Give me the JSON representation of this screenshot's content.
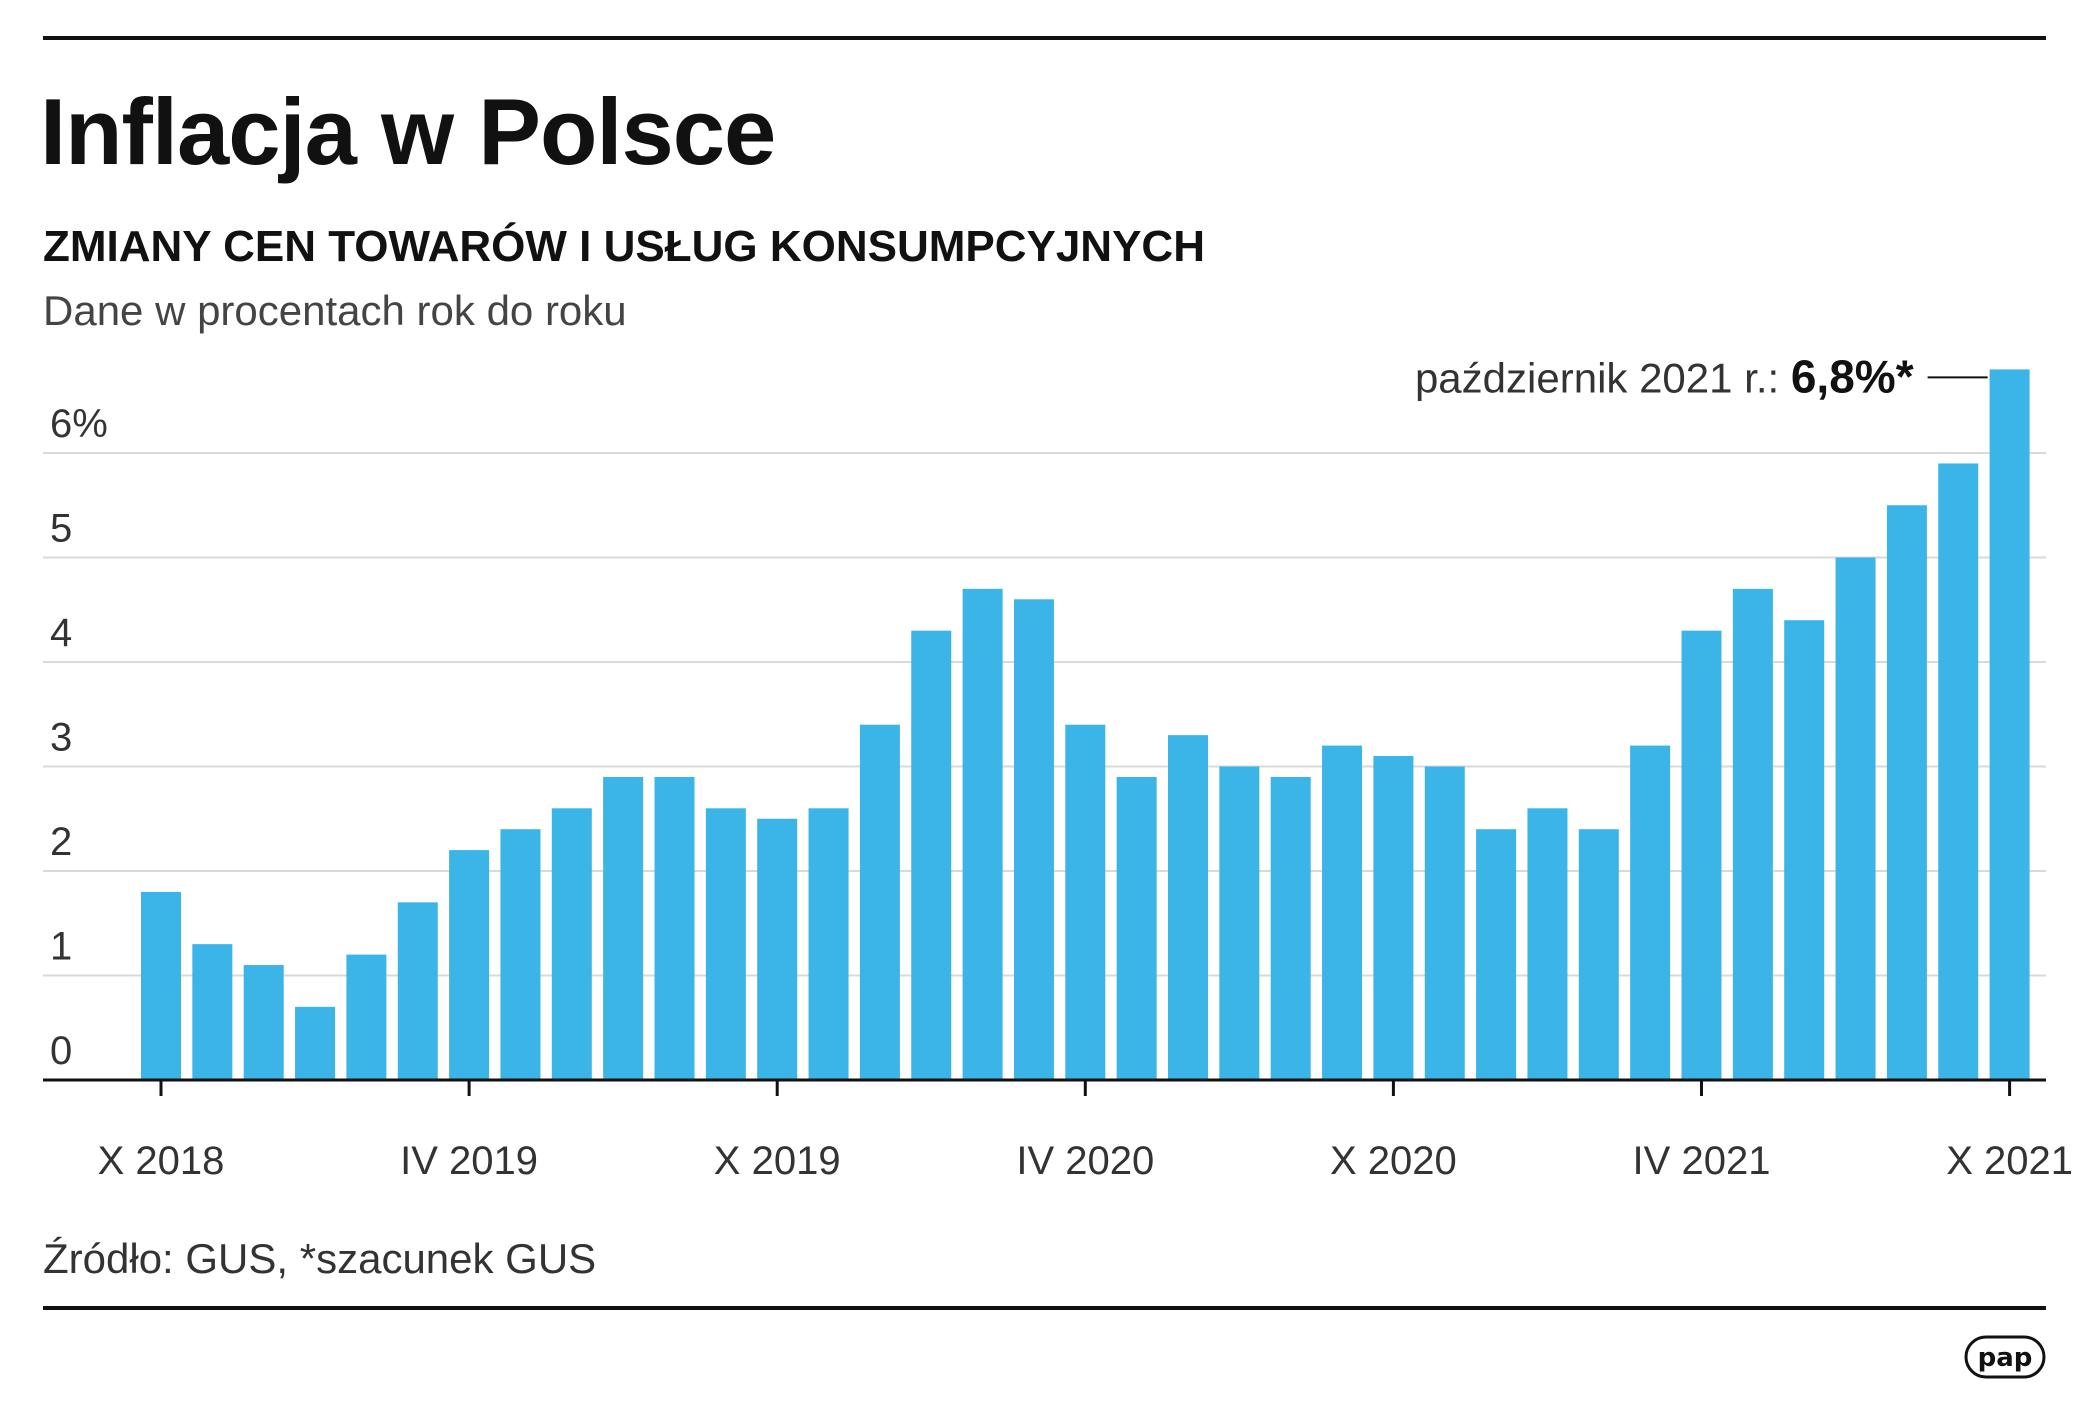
{
  "header": {
    "title": "Inflacja w Polsce",
    "subtitle": "ZMIANY CEN TOWARÓW I USŁUG KONSUMPCYJNYCH",
    "units": "Dane w procentach rok do roku"
  },
  "footer": {
    "source": "Źródło: GUS, *szacunek GUS",
    "logo": "pap"
  },
  "colors": {
    "bar": "#3bb4e8",
    "rule": "#111111",
    "grid": "#d9d9d9"
  },
  "chart_data": {
    "type": "bar",
    "x_start": "X 2018",
    "values": [
      1.8,
      1.3,
      1.1,
      0.7,
      1.2,
      1.7,
      2.2,
      2.4,
      2.6,
      2.9,
      2.9,
      2.6,
      2.5,
      2.6,
      3.4,
      4.3,
      4.7,
      4.6,
      3.4,
      2.9,
      3.3,
      3.0,
      2.9,
      3.2,
      3.1,
      3.0,
      2.4,
      2.6,
      2.4,
      3.2,
      4.3,
      4.7,
      4.4,
      5.0,
      5.5,
      5.9,
      6.8
    ],
    "x_ticks": [
      {
        "index": 0,
        "label": "X 2018"
      },
      {
        "index": 6,
        "label": "IV 2019"
      },
      {
        "index": 12,
        "label": "X 2019"
      },
      {
        "index": 18,
        "label": "IV 2020"
      },
      {
        "index": 24,
        "label": "X 2020"
      },
      {
        "index": 30,
        "label": "IV 2021"
      },
      {
        "index": 36,
        "label": "X 2021"
      }
    ],
    "y_ticks": [
      {
        "value": 0,
        "label": "0"
      },
      {
        "value": 1,
        "label": "1"
      },
      {
        "value": 2,
        "label": "2"
      },
      {
        "value": 3,
        "label": "3"
      },
      {
        "value": 4,
        "label": "4"
      },
      {
        "value": 5,
        "label": "5"
      },
      {
        "value": 6,
        "label": "6%"
      }
    ],
    "ylim": [
      0,
      7
    ],
    "grid": true,
    "annotation": {
      "index": 36,
      "label": "październik 2021 r.:",
      "value_text": "6,8%*"
    }
  }
}
